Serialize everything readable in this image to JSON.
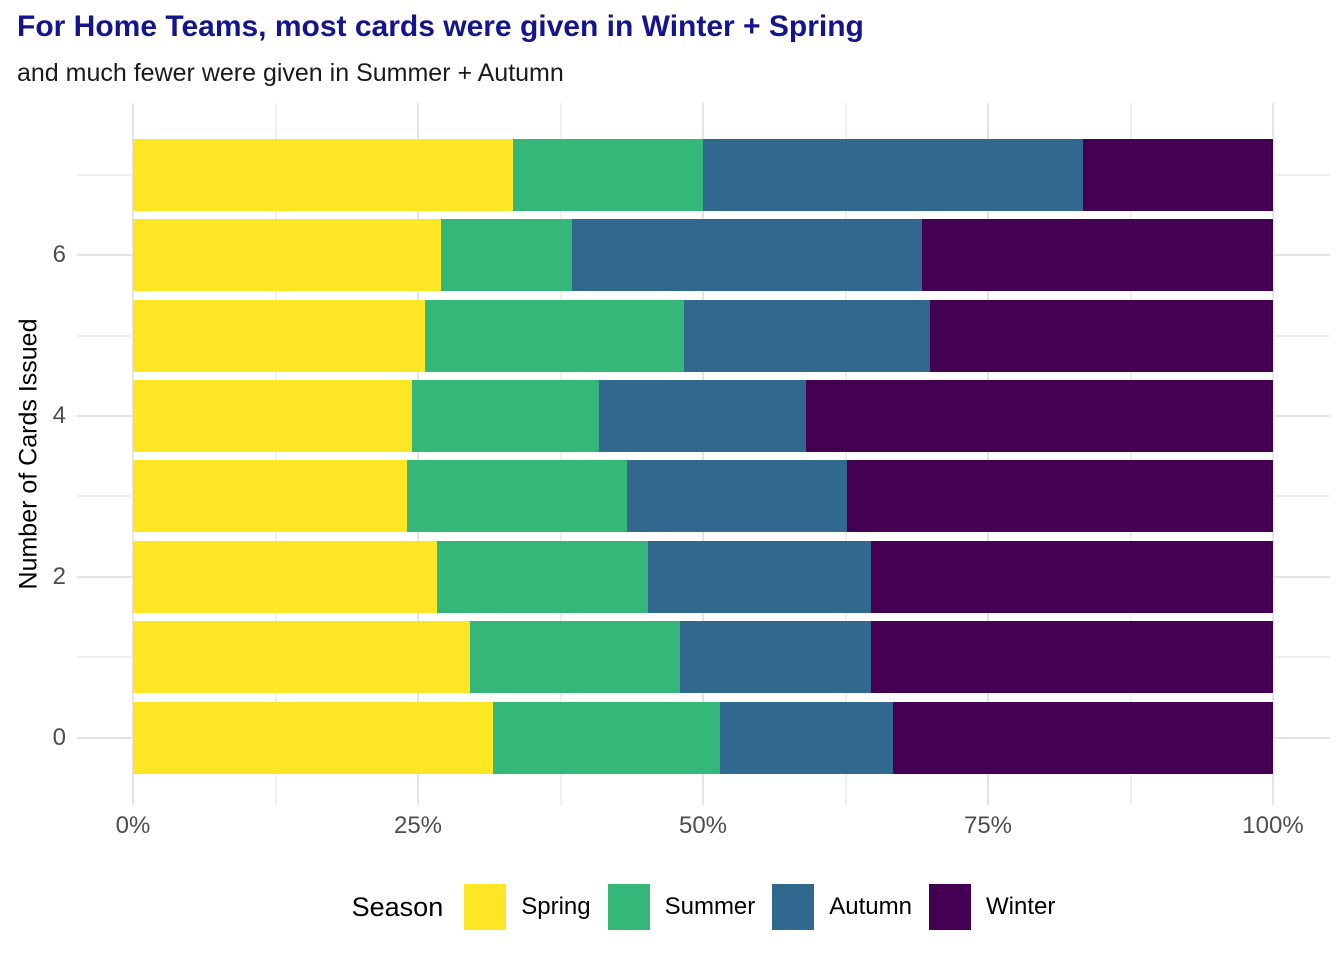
{
  "chart_data": {
    "type": "bar",
    "orientation": "horizontal",
    "stacked": true,
    "normalized_to_100_percent": true,
    "title": "For Home Teams, most cards were given in Winter + Spring",
    "subtitle": "and much fewer were given in Summer + Autumn",
    "xlabel": "",
    "ylabel": "Number of Cards Issued",
    "categories": [
      7,
      6,
      5,
      4,
      3,
      2,
      1,
      0
    ],
    "series": [
      {
        "name": "Spring",
        "color": "#FDE725",
        "values": [
          33.3,
          27.0,
          25.6,
          24.5,
          24.0,
          26.7,
          29.6,
          31.6
        ]
      },
      {
        "name": "Summer",
        "color": "#35B779",
        "values": [
          16.7,
          11.5,
          22.7,
          16.4,
          19.3,
          18.5,
          18.4,
          19.9
        ]
      },
      {
        "name": "Autumn",
        "color": "#31688E",
        "values": [
          33.3,
          30.7,
          21.6,
          18.1,
          19.3,
          19.5,
          16.7,
          15.2
        ]
      },
      {
        "name": "Winter",
        "color": "#440154",
        "values": [
          16.7,
          30.8,
          30.1,
          41.0,
          37.4,
          35.3,
          35.3,
          33.3
        ]
      }
    ],
    "x_axis": {
      "range": [
        0,
        100
      ],
      "major_ticks": [
        {
          "pos": 0,
          "label": "0%"
        },
        {
          "pos": 25,
          "label": "25%"
        },
        {
          "pos": 50,
          "label": "50%"
        },
        {
          "pos": 75,
          "label": "75%"
        },
        {
          "pos": 100,
          "label": "100%"
        }
      ],
      "minor_ticks": [
        12.5,
        37.5,
        62.5,
        87.5
      ]
    },
    "y_axis": {
      "tick_values": [
        6,
        4,
        2,
        0
      ]
    },
    "legend": {
      "title": "Season",
      "position": "bottom",
      "entries": [
        "Spring",
        "Summer",
        "Autumn",
        "Winter"
      ]
    },
    "grid": true,
    "colors": {
      "title_text": "#14148C",
      "subtitle_text": "#1a1a1a",
      "tick_text": "#4d4d4d",
      "grid_major": "#E4E4E4",
      "grid_minor": "#EFEFEF",
      "background": "#ffffff"
    }
  }
}
